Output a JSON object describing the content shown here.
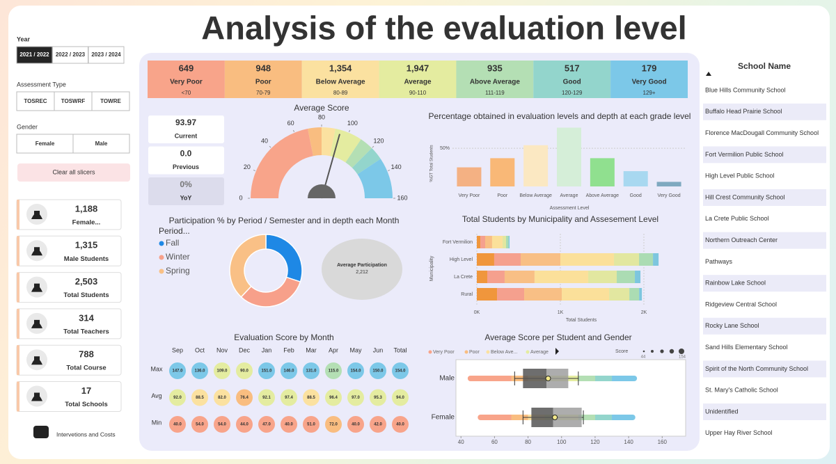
{
  "title": "Analysis of the evaluation level",
  "slicers": {
    "year": {
      "label": "Year",
      "options": [
        "2021 / 2022",
        "2022 / 2023",
        "2023 / 2024"
      ],
      "selected": 0
    },
    "assessment_type": {
      "label": "Assessment Type",
      "options": [
        "TOSREC",
        "TOSWRF",
        "TOWRE"
      ]
    },
    "gender": {
      "label": "Gender",
      "options": [
        "Female",
        "Male"
      ]
    },
    "clear_button": "Clear all slicers"
  },
  "kpi_cards": [
    {
      "value": "1,188",
      "label": "Female..."
    },
    {
      "value": "1,315",
      "label": "Male Students"
    },
    {
      "value": "2,503",
      "label": "Total Students"
    },
    {
      "value": "314",
      "label": "Total Teachers"
    },
    {
      "value": "788",
      "label": "Total Course"
    },
    {
      "value": "17",
      "label": "Total Schools"
    }
  ],
  "link": "Intervetions and Costs",
  "levels": [
    {
      "count": "649",
      "name": "Very Poor",
      "range": "<70",
      "color": "#f8a48a"
    },
    {
      "count": "948",
      "name": "Poor",
      "range": "70-79",
      "color": "#f9bd80"
    },
    {
      "count": "1,354",
      "name": "Below Average",
      "range": "80-89",
      "color": "#fbe1a0"
    },
    {
      "count": "1,947",
      "name": "Average",
      "range": "90-110",
      "color": "#e4eca0"
    },
    {
      "count": "935",
      "name": "Above Average",
      "range": "111-119",
      "color": "#b4dfb4"
    },
    {
      "count": "517",
      "name": "Good",
      "range": "120-129",
      "color": "#93d5cc"
    },
    {
      "count": "179",
      "name": "Very Good",
      "range": "129+",
      "color": "#7cc8e8"
    }
  ],
  "score_cards": [
    {
      "value": "93.97",
      "label": "Current"
    },
    {
      "value": "0.0",
      "label": "Previous"
    },
    {
      "value": "0%",
      "label": "YoY"
    }
  ],
  "gauge": {
    "title": "Average Score",
    "value": 93.97,
    "lim": [
      0,
      160
    ],
    "ticks": [
      0,
      20,
      40,
      60,
      80,
      100,
      120,
      140,
      160
    ],
    "band_edges": [
      0,
      70,
      80,
      90,
      110,
      120,
      130,
      160
    ]
  },
  "level_chart": {
    "type": "bar",
    "title": "Percentage obtained in evaluation levels and depth at each grade level",
    "categories": [
      "Very Poor",
      "Poor",
      "Below Average",
      "Average",
      "Above Average",
      "Good",
      "Very Good"
    ],
    "values": [
      25,
      37,
      54,
      77,
      37,
      20,
      6
    ],
    "colors": [
      "#f4b183",
      "#f9b877",
      "#fbe8c2",
      "#d5eed8",
      "#90e08f",
      "#a8d8f0",
      "#7fa9c0"
    ],
    "ylim": [
      0,
      82
    ],
    "yticks": [
      {
        "value": 50,
        "label": "50%"
      }
    ],
    "ylabel": "%GT Total Students",
    "xlabel": "Assessment Level",
    "grid": true
  },
  "participation": {
    "type": "pie",
    "title": "Participation % by Period / Semester and in depth each Month",
    "legend_title": "Period...",
    "series": [
      {
        "name": "Fall",
        "color": "#1e88e5",
        "value": 30
      },
      {
        "name": "Winter",
        "color": "#f7a08a",
        "value": 32
      },
      {
        "name": "Spring",
        "color": "#f9c086",
        "value": 38
      }
    ],
    "average": {
      "label": "Average Participation",
      "value": "2,212"
    }
  },
  "municipality": {
    "type": "stacked-bar",
    "title": "Total Students by Municipality and Assesement Level",
    "categories": [
      "Fort Vermilion",
      "High Level",
      "La Crete",
      "Rural"
    ],
    "series": [
      {
        "color": "#f0963c",
        "values": [
          42,
          208,
          125,
          242
        ]
      },
      {
        "color": "#f5a08e",
        "values": [
          58,
          317,
          208,
          325
        ]
      },
      {
        "color": "#f8bf85",
        "values": [
          83,
          475,
          358,
          450
        ]
      },
      {
        "color": "#fbe09a",
        "values": [
          125,
          642,
          642,
          567
        ]
      },
      {
        "color": "#e2e7a0",
        "values": [
          42,
          300,
          342,
          242
        ]
      },
      {
        "color": "#abdcb3",
        "values": [
          30,
          167,
          217,
          117
        ]
      },
      {
        "color": "#7dc6de",
        "values": [
          12,
          67,
          67,
          33
        ]
      }
    ],
    "xlim": [
      0,
      2500
    ],
    "xticks": [
      {
        "value": 0,
        "label": "0K"
      },
      {
        "value": 1000,
        "label": "1K"
      },
      {
        "value": 2000,
        "label": "2K"
      }
    ],
    "ylabel": "Municipality",
    "xlabel": "Total Students",
    "grid": true
  },
  "monthly": {
    "title": "Evaluation Score by Month",
    "columns": [
      "Sep",
      "Oct",
      "Nov",
      "Dec",
      "Jan",
      "Feb",
      "Mar",
      "Apr",
      "May",
      "Jun",
      "Total"
    ],
    "rows": [
      {
        "label": "Max",
        "values": [
          "147.0",
          "136.0",
          "109.0",
          "90.0",
          "151.0",
          "146.0",
          "131.0",
          "115.0",
          "154.0",
          "150.0",
          "154.0"
        ]
      },
      {
        "label": "Avg",
        "values": [
          "92.0",
          "88.5",
          "82.0",
          "76.4",
          "92.1",
          "97.4",
          "88.5",
          "96.4",
          "97.0",
          "95.3",
          "94.0"
        ]
      },
      {
        "label": "Min",
        "values": [
          "40.0",
          "54.0",
          "54.0",
          "44.0",
          "47.0",
          "40.0",
          "51.0",
          "72.0",
          "40.0",
          "42.0",
          "40.0"
        ]
      }
    ]
  },
  "gender_scores": {
    "type": "box",
    "title": "Average Score per Student and Gender",
    "legend": [
      "Very Poor",
      "Poor",
      "Below Ave...",
      "Average"
    ],
    "size_legend": {
      "label": "Score",
      "min": 44,
      "max": 154
    },
    "categories": [
      "Male",
      "Female"
    ],
    "xlim": [
      37,
      174
    ],
    "xticks": [
      40,
      60,
      80,
      100,
      120,
      140,
      160
    ],
    "boxes": [
      {
        "min": 44,
        "whisker_low": 72,
        "q1": 77,
        "median": 91,
        "q3": 104,
        "whisker_high": 110,
        "mean": 92,
        "max": 145
      },
      {
        "min": 50,
        "whisker_low": 77,
        "q1": 82,
        "median": 95,
        "q3": 112,
        "whisker_high": 113,
        "mean": 96,
        "max": 144
      }
    ]
  },
  "schools": {
    "header": "School Name",
    "names": [
      "Blue Hills Community School",
      "Buffalo Head Prairie School",
      "Florence MacDougall Community School",
      "Fort Vermilion Public School",
      "High Level Public School",
      "Hill Crest Community School",
      "La Crete Public School",
      "Northern Outreach Center",
      "Pathways",
      "Rainbow Lake School",
      "Ridgeview Central School",
      "Rocky Lane School",
      "Sand Hills Elementary School",
      "Spirit of the North Community School",
      "St. Mary's Catholic School",
      "Unidentified",
      "Upper Hay River School"
    ]
  }
}
